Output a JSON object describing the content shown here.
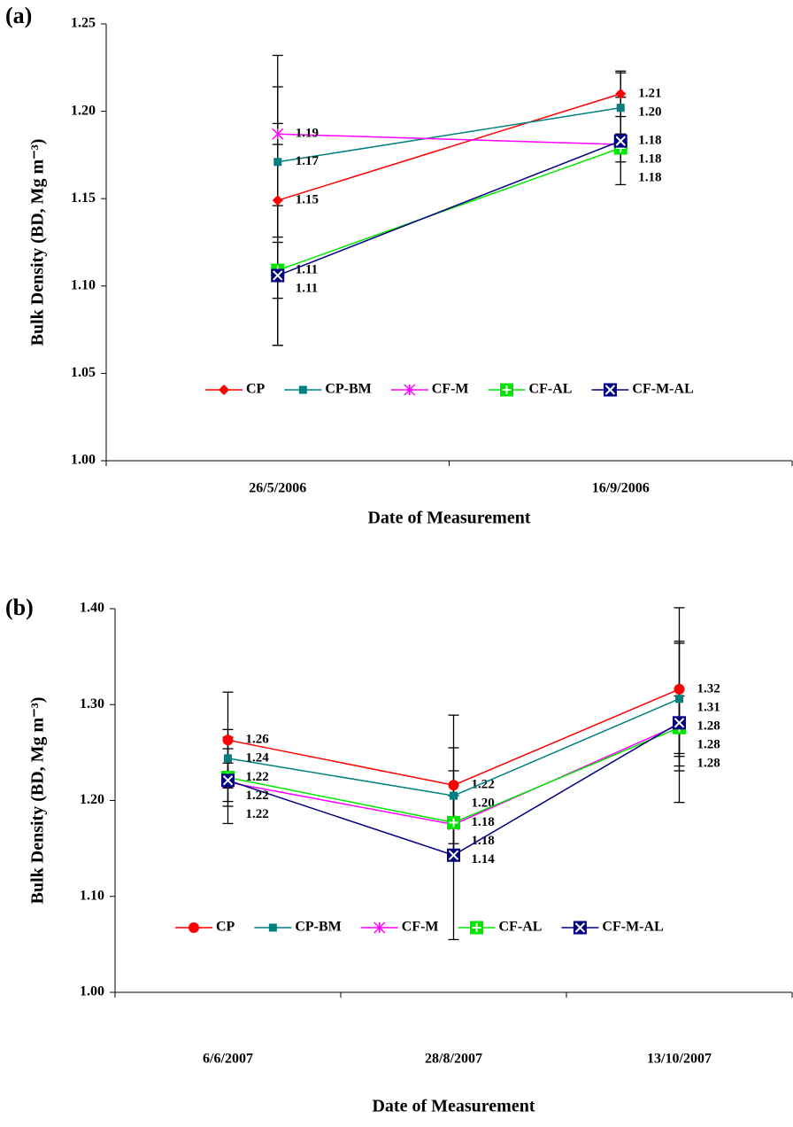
{
  "chart_data": [
    {
      "type": "line",
      "panel": "(a)",
      "xlabel": "Date of Measurement",
      "ylabel": "Bulk Density (BD, Mg m⁻³)",
      "categories": [
        "26/5/2006",
        "16/9/2006"
      ],
      "ylim": [
        1,
        1.25
      ],
      "yticks": [
        {
          "value": 1,
          "label": "1.00"
        },
        1.05,
        {
          "value": 1.1,
          "label": "1.10"
        },
        1.15,
        {
          "value": 1.2,
          "label": "1.20"
        },
        1.25
      ],
      "legend": "bottom",
      "series": [
        {
          "name": "CP",
          "color": "#ff0000",
          "marker": "diamond",
          "values": [
            1.149,
            1.21
          ],
          "value_labels": [
            "1.15",
            "1.21"
          ],
          "errors": [
            0.083,
            0.013
          ]
        },
        {
          "name": "CP-BM",
          "color": "#008080",
          "marker": "square",
          "values": [
            1.171,
            1.202
          ],
          "value_labels": [
            "1.17",
            "1.20"
          ],
          "errors": [
            0.043,
            0.02
          ]
        },
        {
          "name": "CF-M",
          "color": "#ff00ff",
          "marker": "star",
          "values": [
            1.187,
            1.181
          ],
          "value_labels": [
            "1.19",
            "1.18"
          ],
          "errors": [
            0.006,
            0.004
          ]
        },
        {
          "name": "CF-AL",
          "color": "#00e600",
          "marker": "square-plus",
          "values": [
            1.109,
            1.179
          ],
          "value_labels": [
            "1.11",
            "1.18"
          ],
          "errors": [
            0.016,
            0.008
          ]
        },
        {
          "name": "CF-M-AL",
          "color": "#000080",
          "marker": "square-x",
          "values": [
            1.106,
            1.183
          ],
          "value_labels": [
            "1.11",
            "1.18"
          ],
          "errors": [
            0.04,
            0.025
          ]
        }
      ]
    },
    {
      "type": "line",
      "panel": "(b)",
      "xlabel": "Date of Measurement",
      "ylabel": "Bulk Density (BD, Mg m⁻³)",
      "categories": [
        "6/6/2007",
        "28/8/2007",
        "13/10/2007"
      ],
      "ylim": [
        1,
        1.4
      ],
      "yticks": [
        {
          "value": 1,
          "label": "1.00"
        },
        {
          "value": 1.1,
          "label": "1.10"
        },
        {
          "value": 1.2,
          "label": "1.20"
        },
        {
          "value": 1.3,
          "label": "1.30"
        },
        {
          "value": 1.4,
          "label": "1.40"
        }
      ],
      "legend": "bottom",
      "series": [
        {
          "name": "CP",
          "color": "#ff0000",
          "marker": "circle",
          "values": [
            1.263,
            1.216,
            1.316
          ],
          "value_labels": [
            "1.26",
            "1.22",
            "1.32"
          ],
          "errors": [
            0.05,
            0.073,
            0.085
          ]
        },
        {
          "name": "CP-BM",
          "color": "#008080",
          "marker": "square",
          "values": [
            1.244,
            1.205,
            1.306
          ],
          "value_labels": [
            "1.24",
            "1.20",
            "1.31"
          ],
          "errors": [
            0.03,
            0.05,
            0.06
          ]
        },
        {
          "name": "CF-M",
          "color": "#ff00ff",
          "marker": "star",
          "values": [
            1.219,
            1.175,
            1.279
          ],
          "value_labels": [
            "1.22",
            "1.18",
            "1.28"
          ],
          "errors": [
            0.02,
            0.03,
            0.03
          ]
        },
        {
          "name": "CF-AL",
          "color": "#00e600",
          "marker": "square-plus",
          "values": [
            1.224,
            1.177,
            1.276
          ],
          "value_labels": [
            "1.22",
            "1.18",
            "1.28"
          ],
          "errors": [
            0.03,
            0.04,
            0.04
          ]
        },
        {
          "name": "CF-M-AL",
          "color": "#000080",
          "marker": "square-x",
          "values": [
            1.221,
            1.143,
            1.281
          ],
          "value_labels": [
            "1.22",
            "1.14",
            "1.28"
          ],
          "errors": [
            0.045,
            0.088,
            0.083
          ]
        }
      ]
    }
  ]
}
